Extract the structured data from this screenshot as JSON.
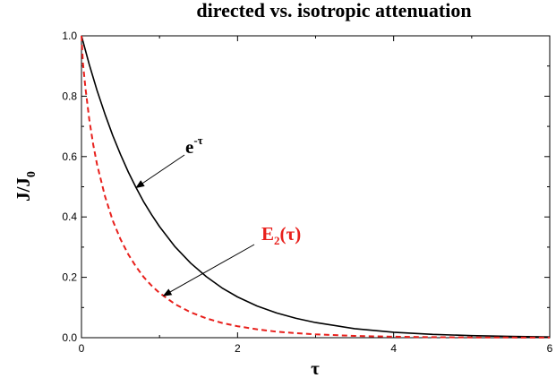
{
  "chart_data": {
    "type": "line",
    "title": "directed vs. isotropic attenuation",
    "xlabel": "τ",
    "ylabel_main": "J/J",
    "ylabel_sub": "0",
    "xlim": [
      0,
      6
    ],
    "ylim": [
      0,
      1.0
    ],
    "xticks": [
      "0",
      "2",
      "4",
      "6"
    ],
    "yticks": [
      "0.0",
      "0.2",
      "0.4",
      "0.6",
      "0.8",
      "1.0"
    ],
    "grid": false,
    "series": [
      {
        "id": "exp",
        "color": "#000000",
        "dash": "solid",
        "x": [
          0,
          0.1,
          0.2,
          0.3,
          0.4,
          0.5,
          0.6,
          0.7,
          0.8,
          0.9,
          1.0,
          1.2,
          1.4,
          1.6,
          1.8,
          2.0,
          2.25,
          2.5,
          2.75,
          3.0,
          3.5,
          4.0,
          4.5,
          5.0,
          5.5,
          6.0
        ],
        "values": [
          1.0,
          0.905,
          0.819,
          0.741,
          0.67,
          0.607,
          0.549,
          0.497,
          0.449,
          0.407,
          0.368,
          0.301,
          0.247,
          0.202,
          0.165,
          0.135,
          0.105,
          0.082,
          0.064,
          0.05,
          0.03,
          0.018,
          0.011,
          0.0067,
          0.0041,
          0.0025
        ]
      },
      {
        "id": "e2",
        "color": "#e8201c",
        "dash": "dashed",
        "x": [
          0,
          0.02,
          0.05,
          0.1,
          0.15,
          0.2,
          0.3,
          0.4,
          0.5,
          0.6,
          0.7,
          0.8,
          0.9,
          1.0,
          1.2,
          1.4,
          1.6,
          1.8,
          2.0,
          2.25,
          2.5,
          2.75,
          3.0,
          3.5,
          4.0,
          4.5,
          5.0,
          5.5,
          6.0
        ],
        "values": [
          1.0,
          0.907,
          0.828,
          0.723,
          0.64,
          0.574,
          0.469,
          0.388,
          0.326,
          0.276,
          0.235,
          0.2,
          0.172,
          0.148,
          0.111,
          0.084,
          0.064,
          0.049,
          0.038,
          0.028,
          0.02,
          0.015,
          0.011,
          0.0059,
          0.0033,
          0.0018,
          0.001,
          0.0006,
          0.0003
        ]
      }
    ],
    "annotations": [
      {
        "id": "exp",
        "base": "e",
        "sup": "-τ",
        "color": "#000000",
        "points_to_x": 0.7
      },
      {
        "id": "e2",
        "base": "E",
        "sub": "2",
        "tail": "(τ)",
        "color": "#e8201c",
        "points_to_x": 1.05
      }
    ]
  }
}
